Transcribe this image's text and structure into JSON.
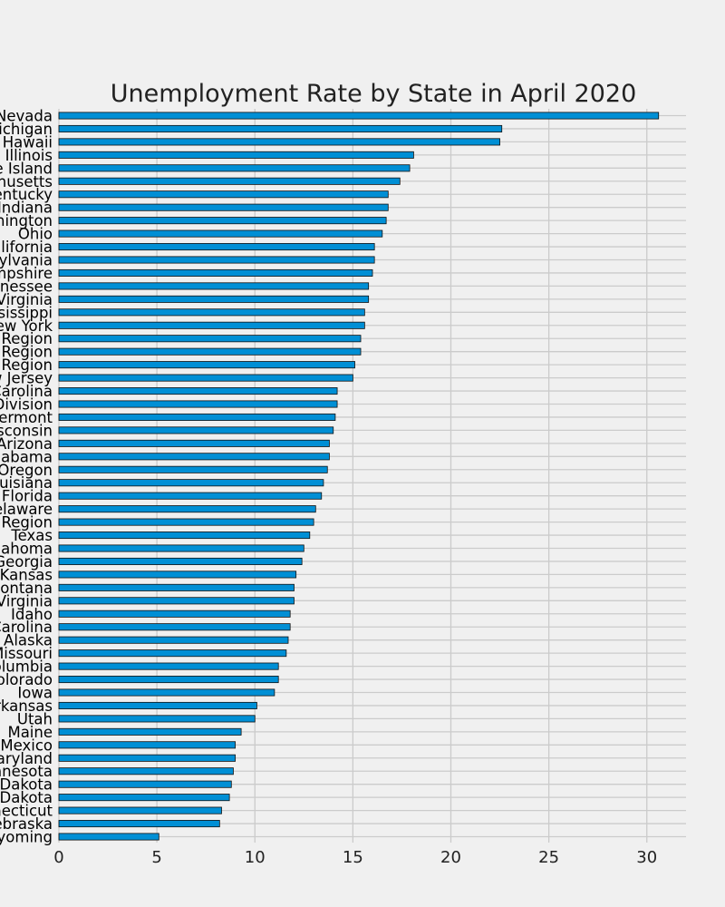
{
  "chart_data": {
    "type": "bar",
    "orientation": "horizontal",
    "title": "Unemployment Rate by State in April 2020",
    "xlabel": "",
    "ylabel": "",
    "xlim": [
      0,
      32
    ],
    "x_ticks": [
      0,
      5,
      10,
      15,
      20,
      25,
      30
    ],
    "grid": true,
    "bar_color": "#008fd5",
    "categories": [
      "Nevada",
      "Michigan",
      "Hawaii",
      "Illinois",
      "Rhode Island",
      "Massachusetts",
      "Kentucky",
      "Indiana",
      "Washington",
      "Ohio",
      "California",
      "Pennsylvania",
      "New Hampshire",
      "Tennessee",
      "West Virginia",
      "Mississippi",
      "New York",
      "Region",
      "Region",
      "Region",
      "New Jersey",
      "North Carolina",
      "Division",
      "Vermont",
      "Wisconsin",
      "Arizona",
      "Alabama",
      "Oregon",
      "Louisiana",
      "Florida",
      "Delaware",
      "Region",
      "Texas",
      "Oklahoma",
      "Georgia",
      "Kansas",
      "Montana",
      "Virginia",
      "Idaho",
      "South Carolina",
      "Alaska",
      "Missouri",
      "District of Columbia",
      "Colorado",
      "Iowa",
      "Arkansas",
      "Utah",
      "Maine",
      "New Mexico",
      "Maryland",
      "Minnesota",
      "South Dakota",
      "North Dakota",
      "Connecticut",
      "Nebraska",
      "Wyoming"
    ],
    "values": [
      30.6,
      22.6,
      22.5,
      18.1,
      17.9,
      17.4,
      16.8,
      16.8,
      16.7,
      16.5,
      16.1,
      16.1,
      16.0,
      15.8,
      15.8,
      15.6,
      15.6,
      15.4,
      15.4,
      15.1,
      15.0,
      14.2,
      14.2,
      14.1,
      14.0,
      13.8,
      13.8,
      13.7,
      13.5,
      13.4,
      13.1,
      13.0,
      12.8,
      12.5,
      12.4,
      12.1,
      12.0,
      12.0,
      11.8,
      11.8,
      11.7,
      11.6,
      11.2,
      11.2,
      11.0,
      10.1,
      10.0,
      9.3,
      9.0,
      9.0,
      8.9,
      8.8,
      8.7,
      8.3,
      8.2,
      5.1
    ]
  }
}
